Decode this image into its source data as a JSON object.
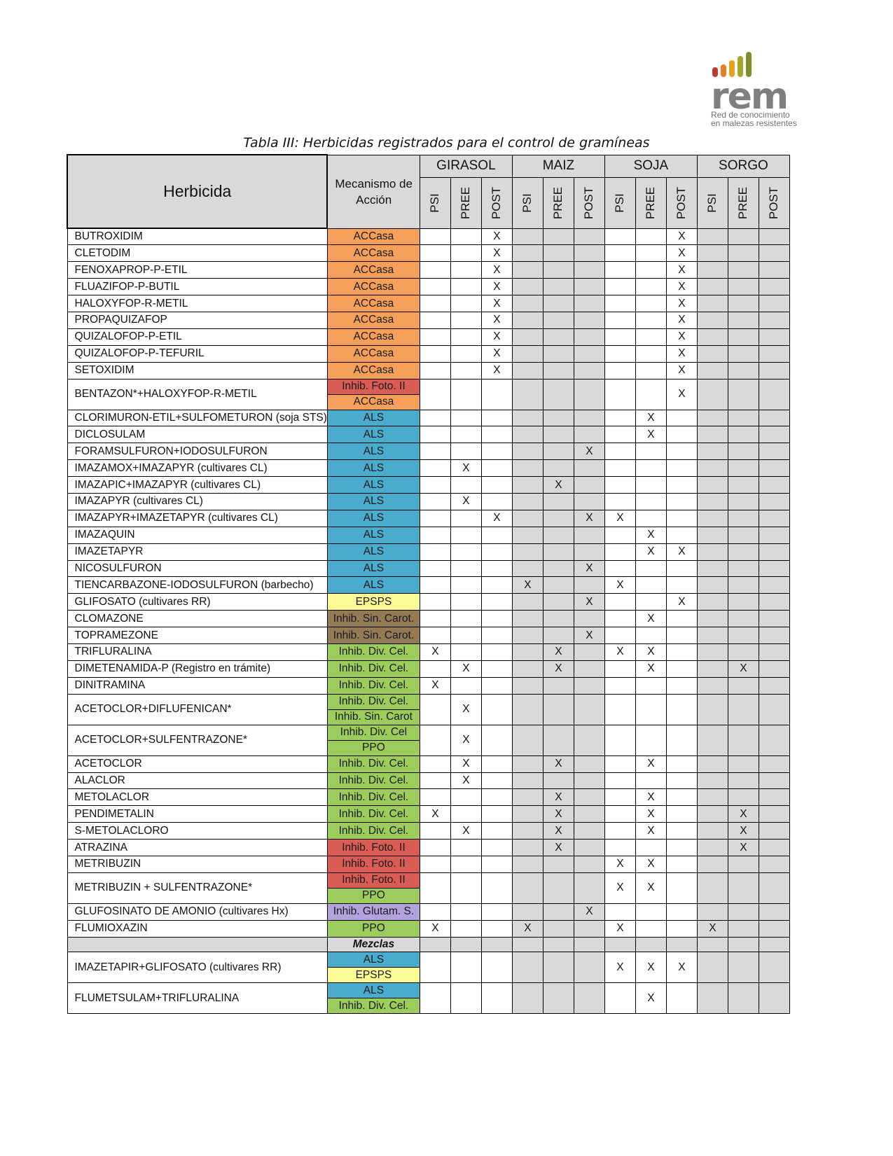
{
  "logo": {
    "wordmark": "rem",
    "line1": "Red de conocimiento",
    "line2": "en malezas resistentes",
    "bar_colors": [
      "#c0392b",
      "#e67e22",
      "#e8a31a",
      "#a8a62a",
      "#7f8f2e"
    ]
  },
  "caption": "Tabla III: Herbicidas registrados para el control de gramíneas",
  "header": {
    "herbicida": "Herbicida",
    "mecanismo": "Mecanismo de Acción",
    "crops": [
      "GIRASOL",
      "MAIZ",
      "SOJA",
      "SORGO"
    ],
    "subs": [
      "PSI",
      "PREE",
      "POST"
    ]
  },
  "mech_colors": {
    "ACCasa": "#f5a05a",
    "Inhib. Foto. II": "#d95c55",
    "ALS": "#4aaccc",
    "EPSPS": "#fbfb96",
    "Inhib. Sin. Carot.": "#947a55",
    "Inhib. Div. Cel.": "#9ccc5c",
    "Inhib. Div. Cel": "#9ccc5c",
    "Inhib. Sin. Carot": "#9ccc5c",
    "PPO": "#9ccc5c",
    "Inhib. Glutam. S.": "#b2a3dd"
  },
  "rows": [
    {
      "name": "BUTROXIDIM",
      "mech": [
        "ACCasa"
      ],
      "x": [
        0,
        0,
        1,
        0,
        0,
        0,
        0,
        0,
        1,
        0,
        0,
        0
      ]
    },
    {
      "name": "CLETODIM",
      "mech": [
        "ACCasa"
      ],
      "x": [
        0,
        0,
        1,
        0,
        0,
        0,
        0,
        0,
        1,
        0,
        0,
        0
      ]
    },
    {
      "name": "FENOXAPROP-P-ETIL",
      "mech": [
        "ACCasa"
      ],
      "x": [
        0,
        0,
        1,
        0,
        0,
        0,
        0,
        0,
        1,
        0,
        0,
        0
      ]
    },
    {
      "name": "FLUAZIFOP-P-BUTIL",
      "mech": [
        "ACCasa"
      ],
      "x": [
        0,
        0,
        1,
        0,
        0,
        0,
        0,
        0,
        1,
        0,
        0,
        0
      ]
    },
    {
      "name": "HALOXYFOP-R-METIL",
      "mech": [
        "ACCasa"
      ],
      "x": [
        0,
        0,
        1,
        0,
        0,
        0,
        0,
        0,
        1,
        0,
        0,
        0
      ]
    },
    {
      "name": "PROPAQUIZAFOP",
      "mech": [
        "ACCasa"
      ],
      "x": [
        0,
        0,
        1,
        0,
        0,
        0,
        0,
        0,
        1,
        0,
        0,
        0
      ]
    },
    {
      "name": "QUIZALOFOP-P-ETIL",
      "mech": [
        "ACCasa"
      ],
      "x": [
        0,
        0,
        1,
        0,
        0,
        0,
        0,
        0,
        1,
        0,
        0,
        0
      ]
    },
    {
      "name": "QUIZALOFOP-P-TEFURIL",
      "mech": [
        "ACCasa"
      ],
      "x": [
        0,
        0,
        1,
        0,
        0,
        0,
        0,
        0,
        1,
        0,
        0,
        0
      ]
    },
    {
      "name": "SETOXIDIM",
      "mech": [
        "ACCasa"
      ],
      "x": [
        0,
        0,
        1,
        0,
        0,
        0,
        0,
        0,
        1,
        0,
        0,
        0
      ]
    },
    {
      "name": "BENTAZON*+HALOXYFOP-R-METIL",
      "mech": [
        "Inhib. Foto. II",
        "ACCasa"
      ],
      "x": [
        0,
        0,
        0,
        0,
        0,
        0,
        0,
        0,
        1,
        0,
        0,
        0
      ]
    },
    {
      "name": "CLORIMURON-ETIL+SULFOMETURON (soja STS)",
      "mech": [
        "ALS"
      ],
      "x": [
        0,
        0,
        0,
        0,
        0,
        0,
        0,
        1,
        0,
        0,
        0,
        0
      ]
    },
    {
      "name": "DICLOSULAM",
      "mech": [
        "ALS"
      ],
      "x": [
        0,
        0,
        0,
        0,
        0,
        0,
        0,
        1,
        0,
        0,
        0,
        0
      ]
    },
    {
      "name": "FORAMSULFURON+IODOSULFURON",
      "mech": [
        "ALS"
      ],
      "x": [
        0,
        0,
        0,
        0,
        0,
        1,
        0,
        0,
        0,
        0,
        0,
        0
      ]
    },
    {
      "name": "IMAZAMOX+IMAZAPYR (cultivares CL)",
      "mech": [
        "ALS"
      ],
      "x": [
        0,
        1,
        0,
        0,
        0,
        0,
        0,
        0,
        0,
        0,
        0,
        0
      ]
    },
    {
      "name": "IMAZAPIC+IMAZAPYR (cultivares CL)",
      "mech": [
        "ALS"
      ],
      "x": [
        0,
        0,
        0,
        0,
        1,
        0,
        0,
        0,
        0,
        0,
        0,
        0
      ]
    },
    {
      "name": "IMAZAPYR (cultivares CL)",
      "mech": [
        "ALS"
      ],
      "x": [
        0,
        1,
        0,
        0,
        0,
        0,
        0,
        0,
        0,
        0,
        0,
        0
      ]
    },
    {
      "name": "IMAZAPYR+IMAZETAPYR (cultivares CL)",
      "mech": [
        "ALS"
      ],
      "x": [
        0,
        0,
        1,
        0,
        0,
        1,
        1,
        0,
        0,
        0,
        0,
        0
      ]
    },
    {
      "name": "IMAZAQUIN",
      "mech": [
        "ALS"
      ],
      "x": [
        0,
        0,
        0,
        0,
        0,
        0,
        0,
        1,
        0,
        0,
        0,
        0
      ]
    },
    {
      "name": "IMAZETAPYR",
      "mech": [
        "ALS"
      ],
      "x": [
        0,
        0,
        0,
        0,
        0,
        0,
        0,
        1,
        1,
        0,
        0,
        0
      ]
    },
    {
      "name": "NICOSULFURON",
      "mech": [
        "ALS"
      ],
      "x": [
        0,
        0,
        0,
        0,
        0,
        1,
        0,
        0,
        0,
        0,
        0,
        0
      ]
    },
    {
      "name": "TIENCARBAZONE-IODOSULFURON (barbecho)",
      "mech": [
        "ALS"
      ],
      "x": [
        0,
        0,
        0,
        1,
        0,
        0,
        1,
        0,
        0,
        0,
        0,
        0
      ]
    },
    {
      "name": "GLIFOSATO (cultivares RR)",
      "mech": [
        "EPSPS"
      ],
      "x": [
        0,
        0,
        0,
        0,
        0,
        1,
        0,
        0,
        1,
        0,
        0,
        0
      ]
    },
    {
      "name": "CLOMAZONE",
      "mech": [
        "Inhib. Sin. Carot."
      ],
      "x": [
        0,
        0,
        0,
        0,
        0,
        0,
        0,
        1,
        0,
        0,
        0,
        0
      ]
    },
    {
      "name": "TOPRAMEZONE",
      "mech": [
        "Inhib. Sin. Carot."
      ],
      "x": [
        0,
        0,
        0,
        0,
        0,
        1,
        0,
        0,
        0,
        0,
        0,
        0
      ]
    },
    {
      "name": "TRIFLURALINA",
      "mech": [
        "Inhib. Div. Cel."
      ],
      "x": [
        1,
        0,
        0,
        0,
        1,
        0,
        1,
        1,
        0,
        0,
        0,
        0
      ]
    },
    {
      "name": "DIMETENAMIDA-P (Registro en trámite)",
      "mech": [
        "Inhib. Div. Cel."
      ],
      "x": [
        0,
        1,
        0,
        0,
        1,
        0,
        0,
        1,
        0,
        0,
        1,
        0
      ]
    },
    {
      "name": "DINITRAMINA",
      "mech": [
        "Inhib. Div. Cel."
      ],
      "x": [
        1,
        0,
        0,
        0,
        0,
        0,
        0,
        0,
        0,
        0,
        0,
        0
      ]
    },
    {
      "name": "ACETOCLOR+DIFLUFENICAN*",
      "mech": [
        "Inhib. Div. Cel.",
        "Inhib. Sin. Carot"
      ],
      "x": [
        0,
        1,
        0,
        0,
        0,
        0,
        0,
        0,
        0,
        0,
        0,
        0
      ]
    },
    {
      "name": "ACETOCLOR+SULFENTRAZONE*",
      "mech": [
        "Inhib. Div. Cel",
        "PPO"
      ],
      "x": [
        0,
        1,
        0,
        0,
        0,
        0,
        0,
        0,
        0,
        0,
        0,
        0
      ]
    },
    {
      "name": "ACETOCLOR",
      "mech": [
        "Inhib. Div. Cel."
      ],
      "x": [
        0,
        1,
        0,
        0,
        1,
        0,
        0,
        1,
        0,
        0,
        0,
        0
      ]
    },
    {
      "name": "ALACLOR",
      "mech": [
        "Inhib. Div. Cel."
      ],
      "x": [
        0,
        1,
        0,
        0,
        0,
        0,
        0,
        0,
        0,
        0,
        0,
        0
      ]
    },
    {
      "name": "METOLACLOR",
      "mech": [
        "Inhib. Div. Cel."
      ],
      "x": [
        0,
        0,
        0,
        0,
        1,
        0,
        0,
        1,
        0,
        0,
        0,
        0
      ]
    },
    {
      "name": "PENDIMETALIN",
      "mech": [
        "Inhib. Div. Cel."
      ],
      "x": [
        1,
        0,
        0,
        0,
        1,
        0,
        0,
        1,
        0,
        0,
        1,
        0
      ]
    },
    {
      "name": "S-METOLACLORO",
      "mech": [
        "Inhib. Div. Cel."
      ],
      "x": [
        0,
        1,
        0,
        0,
        1,
        0,
        0,
        1,
        0,
        0,
        1,
        0
      ]
    },
    {
      "name": "ATRAZINA",
      "mech": [
        "Inhib. Foto. II"
      ],
      "x": [
        0,
        0,
        0,
        0,
        1,
        0,
        0,
        0,
        0,
        0,
        1,
        0
      ]
    },
    {
      "name": "METRIBUZIN",
      "mech": [
        "Inhib. Foto. II"
      ],
      "x": [
        0,
        0,
        0,
        0,
        0,
        0,
        1,
        1,
        0,
        0,
        0,
        0
      ]
    },
    {
      "name": "METRIBUZIN + SULFENTRAZONE*",
      "mech": [
        "Inhib. Foto. II",
        "PPO"
      ],
      "x": [
        0,
        0,
        0,
        0,
        0,
        0,
        1,
        1,
        0,
        0,
        0,
        0
      ]
    },
    {
      "name": "GLUFOSINATO DE AMONIO (cultivares Hx)",
      "mech": [
        "Inhib. Glutam. S."
      ],
      "x": [
        0,
        0,
        0,
        0,
        0,
        1,
        0,
        0,
        0,
        0,
        0,
        0
      ]
    },
    {
      "name": "FLUMIOXAZIN",
      "mech": [
        "PPO"
      ],
      "x": [
        1,
        0,
        0,
        1,
        0,
        0,
        1,
        0,
        0,
        1,
        0,
        0
      ]
    },
    {
      "name": "",
      "mech": [
        "Mezclas"
      ],
      "mezclas": true,
      "x": [
        0,
        0,
        0,
        0,
        0,
        0,
        0,
        0,
        0,
        0,
        0,
        0
      ]
    },
    {
      "name": "IMAZETAPIR+GLIFOSATO (cultivares RR)",
      "mech": [
        "ALS",
        "EPSPS"
      ],
      "x": [
        0,
        0,
        0,
        0,
        0,
        0,
        1,
        1,
        1,
        0,
        0,
        0
      ]
    },
    {
      "name": "FLUMETSULAM+TRIFLURALINA",
      "mech": [
        "ALS",
        "Inhib. Div. Cel."
      ],
      "x": [
        0,
        0,
        0,
        0,
        0,
        0,
        0,
        1,
        0,
        0,
        0,
        0
      ]
    }
  ],
  "mark": "X"
}
